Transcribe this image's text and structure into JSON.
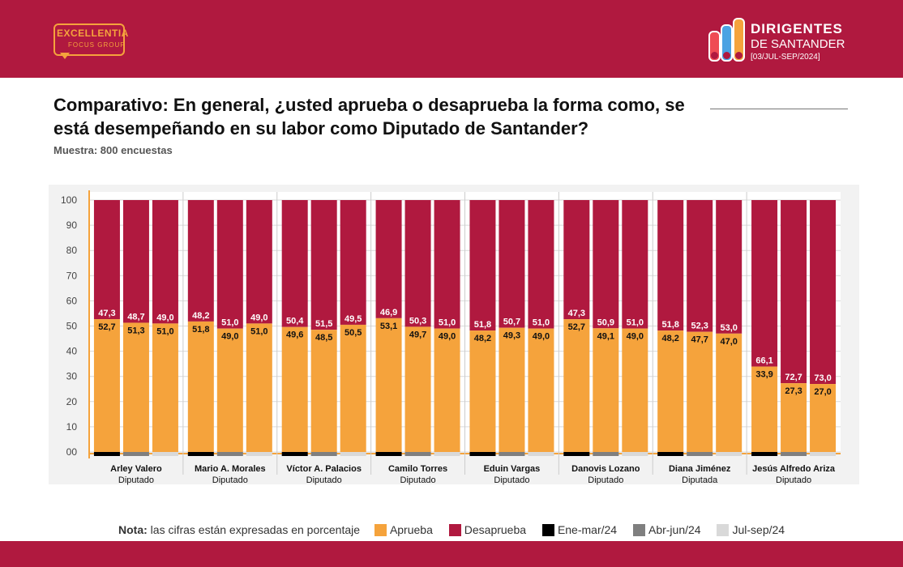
{
  "header": {
    "logo_left_line1": "EXCELLENTIA",
    "logo_left_line2": "FOCUS GROUP",
    "logo_right_line1": "DIRIGENTES",
    "logo_right_line2": "DE SANTANDER",
    "logo_right_line3": "[03/JUL-SEP/2024]",
    "pill_colors": [
      "#ef4b54",
      "#4ba3e3",
      "#f5a33c",
      "#a8c63c"
    ]
  },
  "title": "Comparativo: En general, ¿usted aprueba o desaprueba la forma como, se está desempeñando en su labor como Diputado de Santander?",
  "sample": "Muestra: 800 encuestas",
  "legend": {
    "note_bold": "Nota:",
    "note_text": "las cifras están expresadas en porcentaje",
    "items": [
      {
        "label": "Aprueba",
        "color": "#f5a33c"
      },
      {
        "label": "Desaprueba",
        "color": "#b0193f"
      },
      {
        "label": "Ene-mar/24",
        "color": "#000000"
      },
      {
        "label": "Abr-jun/24",
        "color": "#7f7f7f"
      },
      {
        "label": "Jul-sep/24",
        "color": "#d9d9d9"
      }
    ]
  },
  "chart_data": {
    "type": "bar",
    "stacked": true,
    "ylim": [
      0,
      100
    ],
    "yticks": [
      "00",
      "10",
      "20",
      "30",
      "40",
      "50",
      "60",
      "70",
      "80",
      "90",
      "100"
    ],
    "grid": true,
    "periods": [
      "Ene-mar/24",
      "Abr-jun/24",
      "Jul-sep/24"
    ],
    "period_colors": [
      "#000000",
      "#7f7f7f",
      "#d9d9d9"
    ],
    "colors": {
      "aprueba": "#f5a33c",
      "desaprueba": "#b0193f"
    },
    "groups": [
      {
        "name": "Arley Valero",
        "role": "Diputado",
        "aprueba": [
          "52,7",
          "51,3",
          "51,0"
        ],
        "desaprueba": [
          "47,3",
          "48,7",
          "49,0"
        ]
      },
      {
        "name": "Mario A. Morales",
        "role": "Diputado",
        "aprueba": [
          "51,8",
          "49,0",
          "51,0"
        ],
        "desaprueba": [
          "48,2",
          "51,0",
          "49,0"
        ]
      },
      {
        "name": "Víctor A. Palacios",
        "role": "Diputado",
        "aprueba": [
          "49,6",
          "48,5",
          "50,5"
        ],
        "desaprueba": [
          "50,4",
          "51,5",
          "49,5"
        ]
      },
      {
        "name": "Camilo Torres",
        "role": "Diputado",
        "aprueba": [
          "53,1",
          "49,7",
          "49,0"
        ],
        "desaprueba": [
          "46,9",
          "50,3",
          "51,0"
        ]
      },
      {
        "name": "Eduin Vargas",
        "role": "Diputado",
        "aprueba": [
          "48,2",
          "49,3",
          "49,0"
        ],
        "desaprueba": [
          "51,8",
          "50,7",
          "51,0"
        ]
      },
      {
        "name": "Danovis Lozano",
        "role": "Diputado",
        "aprueba": [
          "52,7",
          "49,1",
          "49,0"
        ],
        "desaprueba": [
          "47,3",
          "50,9",
          "51,0"
        ]
      },
      {
        "name": "Diana Jiménez",
        "role": "Diputada",
        "aprueba": [
          "48,2",
          "47,7",
          "47,0"
        ],
        "desaprueba": [
          "51,8",
          "52,3",
          "53,0"
        ]
      },
      {
        "name": "Jesús Alfredo Ariza",
        "role": "Diputado",
        "aprueba": [
          "33,9",
          "27,3",
          "27,0"
        ],
        "desaprueba": [
          "66,1",
          "72,7",
          "73,0"
        ]
      }
    ]
  }
}
